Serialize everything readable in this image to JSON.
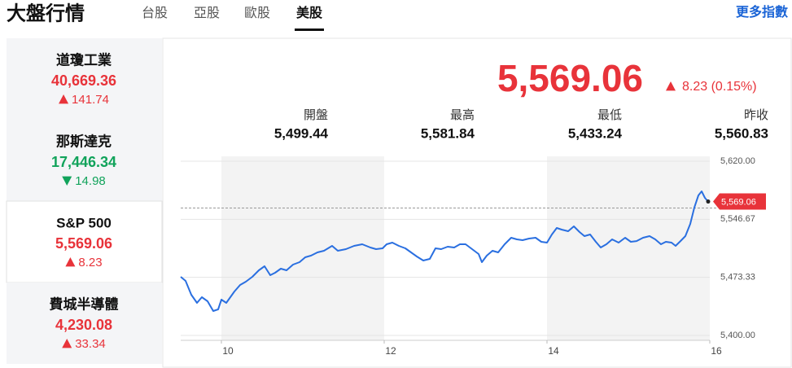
{
  "header": {
    "title": "大盤行情",
    "tabs": [
      "台股",
      "亞股",
      "歐股",
      "美股"
    ],
    "active_tab": 3,
    "more_link": "更多指數"
  },
  "indices": [
    {
      "name": "道瓊工業",
      "value": "40,669.36",
      "change": "141.74",
      "direction": "up"
    },
    {
      "name": "那斯達克",
      "value": "17,446.34",
      "change": "14.98",
      "direction": "down"
    },
    {
      "name": "S&P 500",
      "value": "5,569.06",
      "change": "8.23",
      "direction": "up"
    },
    {
      "name": "費城半導體",
      "value": "4,230.08",
      "change": "33.34",
      "direction": "up"
    }
  ],
  "selected_index": 2,
  "quote": {
    "price": "5,569.06",
    "change": "8.23 (0.15%)",
    "direction": "up"
  },
  "stats": [
    {
      "label": "開盤",
      "value": "5,499.44"
    },
    {
      "label": "最高",
      "value": "5,581.84"
    },
    {
      "label": "最低",
      "value": "5,433.24"
    },
    {
      "label": "昨收",
      "value": "5,560.83"
    }
  ],
  "chart": {
    "type": "line",
    "color": "#2a6fe0",
    "x": [
      9.5,
      9.56,
      9.63,
      9.7,
      9.76,
      9.83,
      9.9,
      9.96,
      10,
      10.06,
      10.11,
      10.16,
      10.23,
      10.3,
      10.38,
      10.46,
      10.53,
      10.6,
      10.66,
      10.73,
      10.8,
      10.88,
      10.96,
      11.03,
      11.1,
      11.18,
      11.26,
      11.36,
      11.43,
      11.53,
      11.63,
      11.73,
      11.83,
      11.9,
      11.98,
      12.03,
      12.1,
      12.18,
      12.26,
      12.33,
      12.4,
      12.48,
      12.56,
      12.63,
      12.7,
      12.78,
      12.86,
      12.93,
      13,
      13.08,
      13.16,
      13.2,
      13.26,
      13.33,
      13.4,
      13.48,
      13.56,
      13.63,
      13.7,
      13.78,
      13.86,
      13.93,
      14,
      14.06,
      14.12,
      14.18,
      14.26,
      14.33,
      14.4,
      14.46,
      14.53,
      14.6,
      14.66,
      14.73,
      14.8,
      14.88,
      14.96,
      15.03,
      15.1,
      15.18,
      15.26,
      15.33,
      15.4,
      15.46,
      15.53,
      15.58,
      15.64,
      15.7,
      15.76,
      15.81,
      15.86,
      15.9,
      15.94,
      15.98
    ],
    "values": [
      5474.0,
      5468.9,
      5451.4,
      5441.1,
      5448.3,
      5443.2,
      5430.8,
      5432.9,
      5445.2,
      5441.1,
      5448.3,
      5455.5,
      5463.7,
      5467.8,
      5474.0,
      5482.2,
      5487.4,
      5476.1,
      5479.2,
      5484.3,
      5482.2,
      5489.4,
      5492.5,
      5498.7,
      5500.7,
      5504.9,
      5506.9,
      5513.1,
      5506.9,
      5509.0,
      5513.1,
      5515.1,
      5511.0,
      5509.0,
      5510.0,
      5515.1,
      5517.2,
      5513.1,
      5510.0,
      5504.9,
      5499.7,
      5494.6,
      5496.6,
      5510.0,
      5509.0,
      5512.1,
      5511.0,
      5515.1,
      5515.1,
      5509.0,
      5502.8,
      5492.5,
      5500.7,
      5506.9,
      5504.9,
      5515.1,
      5523.4,
      5521.3,
      5520.3,
      5522.3,
      5523.4,
      5518.2,
      5517.2,
      5527.5,
      5535.7,
      5533.6,
      5531.6,
      5537.8,
      5530.6,
      5525.4,
      5527.5,
      5518.2,
      5511.0,
      5515.1,
      5521.3,
      5517.2,
      5523.4,
      5518.2,
      5519.2,
      5523.4,
      5525.4,
      5521.3,
      5515.1,
      5518.2,
      5517.2,
      5513.1,
      5519.2,
      5525.4,
      5540.8,
      5561.4,
      5576.8,
      5582.0,
      5573.7,
      5569.06
    ],
    "xlim": [
      9.5,
      16
    ],
    "xticks": [
      10,
      12,
      14,
      16
    ],
    "ylim": [
      5400,
      5620
    ],
    "yticks": [
      {
        "value": 5400,
        "label": "5,400.00"
      },
      {
        "value": 5473.33,
        "label": "5,473.33"
      },
      {
        "value": 5546.67,
        "label": "5,546.67"
      },
      {
        "value": 5620,
        "label": "5,620.00"
      }
    ],
    "reference_line": 5560.83,
    "last_label": {
      "value": 5569.06,
      "label": "5,569.06"
    },
    "grid": true
  }
}
